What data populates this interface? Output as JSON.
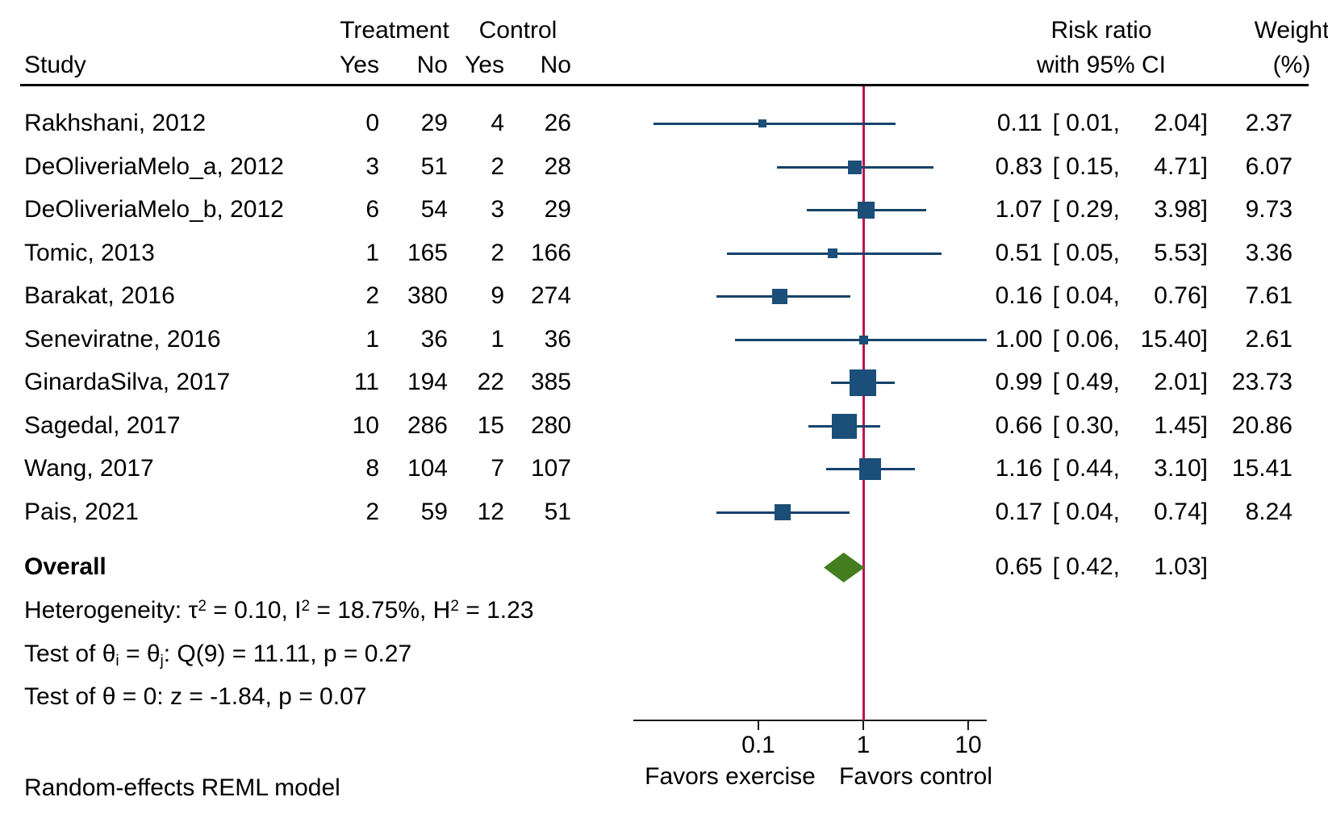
{
  "header": {
    "study": "Study",
    "treatment": "Treatment",
    "control": "Control",
    "treatment_yes": "Yes",
    "treatment_no": "No",
    "control_yes": "Yes",
    "control_no": "No",
    "risk_ratio_line1": "Risk ratio",
    "risk_ratio_line2": "with 95% CI",
    "weight_line1": "Weight",
    "weight_line2": "(%)"
  },
  "colors": {
    "marker": "#1b4e78",
    "ci_line": "#16436a",
    "reference_line": "#c11251",
    "diamond": "#447d20",
    "axis": "#1a1a1a"
  },
  "chart_data": {
    "type": "forest",
    "effect_measure": "Risk ratio",
    "x_scale": "log10",
    "x_axis": {
      "ticks": [
        0.1,
        1,
        10
      ],
      "tick_labels": [
        "0.1",
        "1",
        "10"
      ],
      "reference_line": 1
    },
    "studies": [
      {
        "label": "Rakhshani, 2012",
        "treatment_yes": 0,
        "treatment_no": 29,
        "control_yes": 4,
        "control_no": 26,
        "rr": 0.11,
        "ci_low": 0.01,
        "ci_high": 2.04,
        "weight": 2.37
      },
      {
        "label": "DeOliveriaMelo_a, 2012",
        "treatment_yes": 3,
        "treatment_no": 51,
        "control_yes": 2,
        "control_no": 28,
        "rr": 0.83,
        "ci_low": 0.15,
        "ci_high": 4.71,
        "weight": 6.07
      },
      {
        "label": "DeOliveriaMelo_b, 2012",
        "treatment_yes": 6,
        "treatment_no": 54,
        "control_yes": 3,
        "control_no": 29,
        "rr": 1.07,
        "ci_low": 0.29,
        "ci_high": 3.98,
        "weight": 9.73
      },
      {
        "label": "Tomic, 2013",
        "treatment_yes": 1,
        "treatment_no": 165,
        "control_yes": 2,
        "control_no": 166,
        "rr": 0.51,
        "ci_low": 0.05,
        "ci_high": 5.53,
        "weight": 3.36
      },
      {
        "label": "Barakat, 2016",
        "treatment_yes": 2,
        "treatment_no": 380,
        "control_yes": 9,
        "control_no": 274,
        "rr": 0.16,
        "ci_low": 0.04,
        "ci_high": 0.76,
        "weight": 7.61
      },
      {
        "label": "Seneviratne, 2016",
        "treatment_yes": 1,
        "treatment_no": 36,
        "control_yes": 1,
        "control_no": 36,
        "rr": 1.0,
        "ci_low": 0.06,
        "ci_high": 15.4,
        "weight": 2.61
      },
      {
        "label": "GinardaSilva, 2017",
        "treatment_yes": 11,
        "treatment_no": 194,
        "control_yes": 22,
        "control_no": 385,
        "rr": 0.99,
        "ci_low": 0.49,
        "ci_high": 2.01,
        "weight": 23.73
      },
      {
        "label": "Sagedal, 2017",
        "treatment_yes": 10,
        "treatment_no": 286,
        "control_yes": 15,
        "control_no": 280,
        "rr": 0.66,
        "ci_low": 0.3,
        "ci_high": 1.45,
        "weight": 20.86
      },
      {
        "label": "Wang, 2017",
        "treatment_yes": 8,
        "treatment_no": 104,
        "control_yes": 7,
        "control_no": 107,
        "rr": 1.16,
        "ci_low": 0.44,
        "ci_high": 3.1,
        "weight": 15.41
      },
      {
        "label": "Pais, 2021",
        "treatment_yes": 2,
        "treatment_no": 59,
        "control_yes": 12,
        "control_no": 51,
        "rr": 0.17,
        "ci_low": 0.04,
        "ci_high": 0.74,
        "weight": 8.24
      }
    ],
    "overall": {
      "label": "Overall",
      "rr": 0.65,
      "ci_low": 0.42,
      "ci_high": 1.03
    },
    "stats": {
      "heterogeneity": [
        {
          "t": "Heterogeneity: τ"
        },
        {
          "t": "2",
          "s": "sup"
        },
        {
          "t": " = 0.10, I"
        },
        {
          "t": "2",
          "s": "sup"
        },
        {
          "t": " = 18.75%, H"
        },
        {
          "t": "2",
          "s": "sup"
        },
        {
          "t": " = 1.23"
        }
      ],
      "test_theta_ij": [
        {
          "t": "Test of θ"
        },
        {
          "t": "i",
          "s": "sub"
        },
        {
          "t": " = θ"
        },
        {
          "t": "j",
          "s": "sub"
        },
        {
          "t": ": Q(9) = 11.11, p = 0.27"
        }
      ],
      "test_theta_zero": [
        {
          "t": "Test of θ = 0: z = -1.84, p = 0.07"
        }
      ]
    },
    "favors_left": "Favors exercise",
    "favors_right": "Favors control",
    "note": "Random-effects REML model"
  }
}
